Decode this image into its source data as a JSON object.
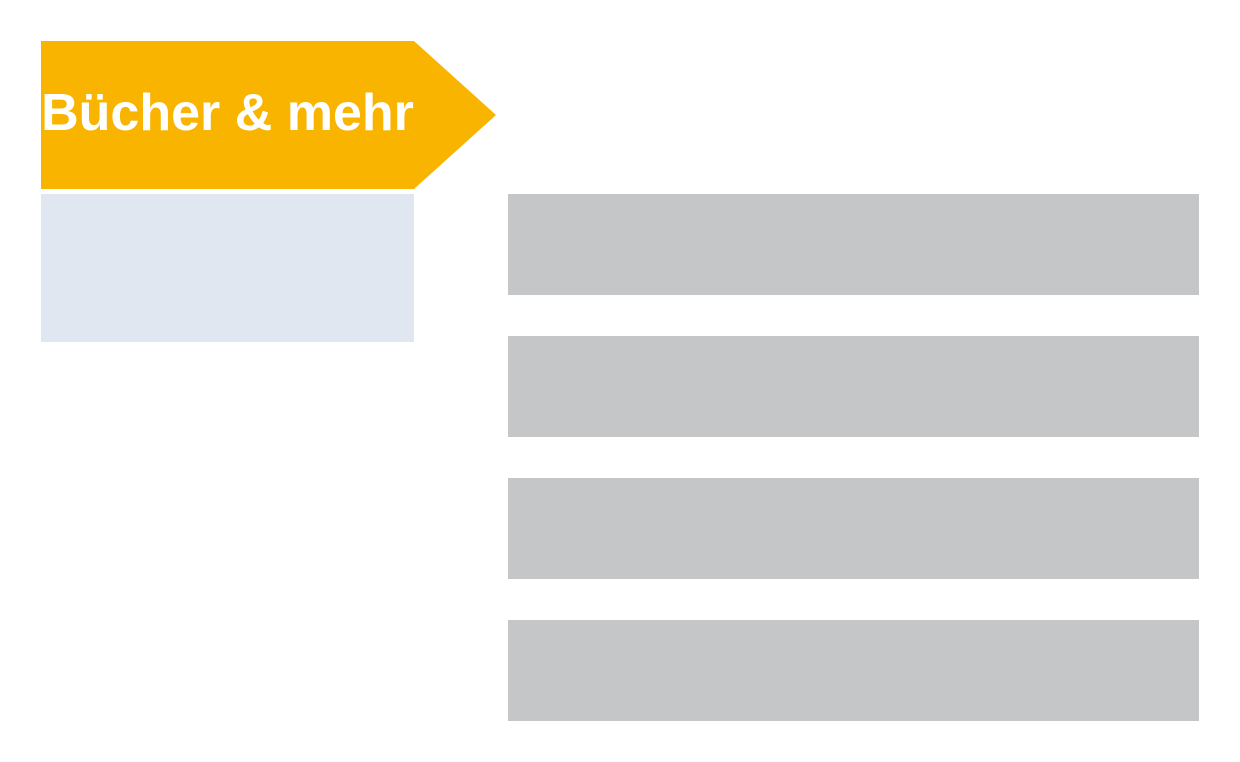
{
  "category": {
    "label": "Bücher & mehr",
    "color": "#f9b400",
    "text_color": "#ffffff"
  },
  "sub_panel": {
    "color": "#e0e7f0"
  },
  "list": {
    "placeholder_color": "#c5c6c8",
    "items": [
      {
        "index": 1
      },
      {
        "index": 2
      },
      {
        "index": 3
      },
      {
        "index": 4
      }
    ]
  }
}
